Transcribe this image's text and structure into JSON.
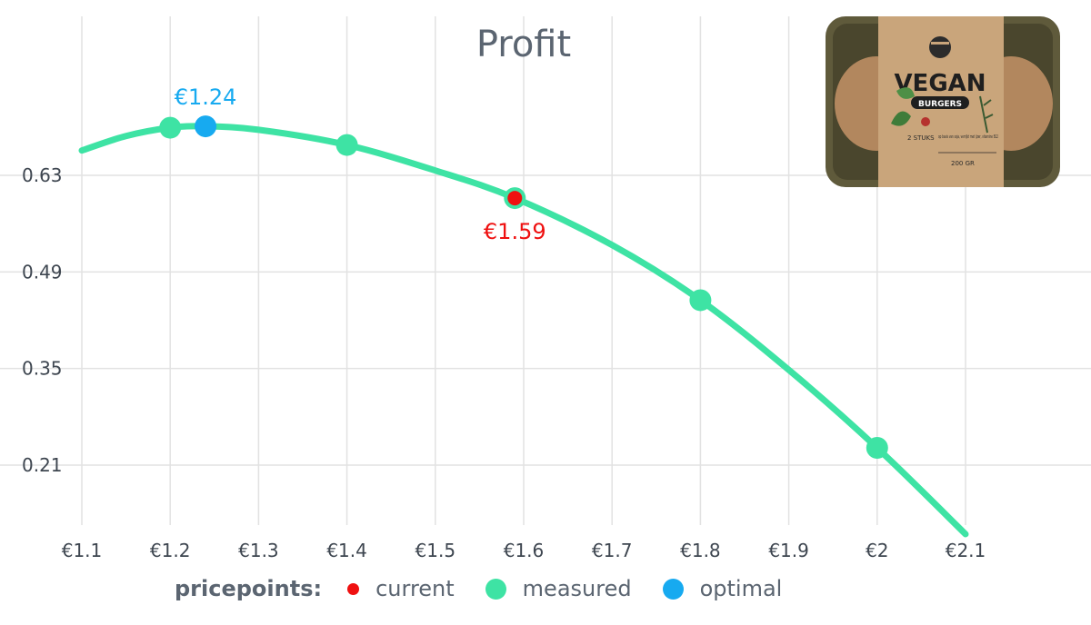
{
  "chart_data": {
    "type": "line",
    "title": "Profit",
    "xlabel": "",
    "ylabel": "",
    "xlim": [
      1.1,
      2.1
    ],
    "ylim": [
      0.12,
      0.75
    ],
    "x_ticks": [
      1.1,
      1.2,
      1.3,
      1.4,
      1.5,
      1.6,
      1.7,
      1.8,
      1.9,
      2.0,
      2.1
    ],
    "x_tick_labels": [
      "€1.1",
      "€1.2",
      "€1.3",
      "€1.4",
      "€1.5",
      "€1.6",
      "€1.7",
      "€1.8",
      "€1.9",
      "€2",
      "€2.1"
    ],
    "y_ticks": [
      0.21,
      0.35,
      0.49,
      0.63
    ],
    "y_tick_labels": [
      "0.21",
      "0.35",
      "0.49",
      "0.63"
    ],
    "grid": true,
    "curve": {
      "x": [
        1.1,
        1.15,
        1.2,
        1.24,
        1.3,
        1.4,
        1.5,
        1.59,
        1.7,
        1.8,
        1.9,
        2.0,
        2.1
      ],
      "y": [
        0.666,
        0.687,
        0.699,
        0.701,
        0.696,
        0.674,
        0.637,
        0.597,
        0.529,
        0.449,
        0.348,
        0.235,
        0.11
      ]
    },
    "series": [
      {
        "name": "measured",
        "x": [
          1.2,
          1.4,
          1.8,
          2.0
        ],
        "y": [
          0.699,
          0.674,
          0.449,
          0.235
        ]
      },
      {
        "name": "current",
        "x": [
          1.59
        ],
        "y": [
          0.597
        ]
      },
      {
        "name": "optimal",
        "x": [
          1.24
        ],
        "y": [
          0.701
        ]
      }
    ],
    "annotations": [
      {
        "text": "€1.24",
        "x": 1.24,
        "y": 0.701,
        "series": "optimal"
      },
      {
        "text": "€1.59",
        "x": 1.59,
        "y": 0.597,
        "series": "current"
      }
    ],
    "legend": {
      "title": "pricepoints:",
      "position": "bottom",
      "items": [
        {
          "label": "current",
          "color": "#ef1010"
        },
        {
          "label": "measured",
          "color": "#3ee3a4"
        },
        {
          "label": "optimal",
          "color": "#17aaf0"
        }
      ]
    },
    "colors": {
      "curve": "#3ee3a4",
      "current": "#ef1010",
      "measured": "#3ee3a4",
      "optimal": "#17aaf0",
      "grid": "#e2e2e2",
      "text": "#3e4650"
    }
  },
  "product_image": {
    "icon": "vegan-burger-package-icon",
    "brand": "VEGAN",
    "product": "BURGERS",
    "count": "2 STUKS",
    "description": "op basis van soja, verrijkt met ijzer, vitamine B12",
    "weight": "200 GR"
  }
}
